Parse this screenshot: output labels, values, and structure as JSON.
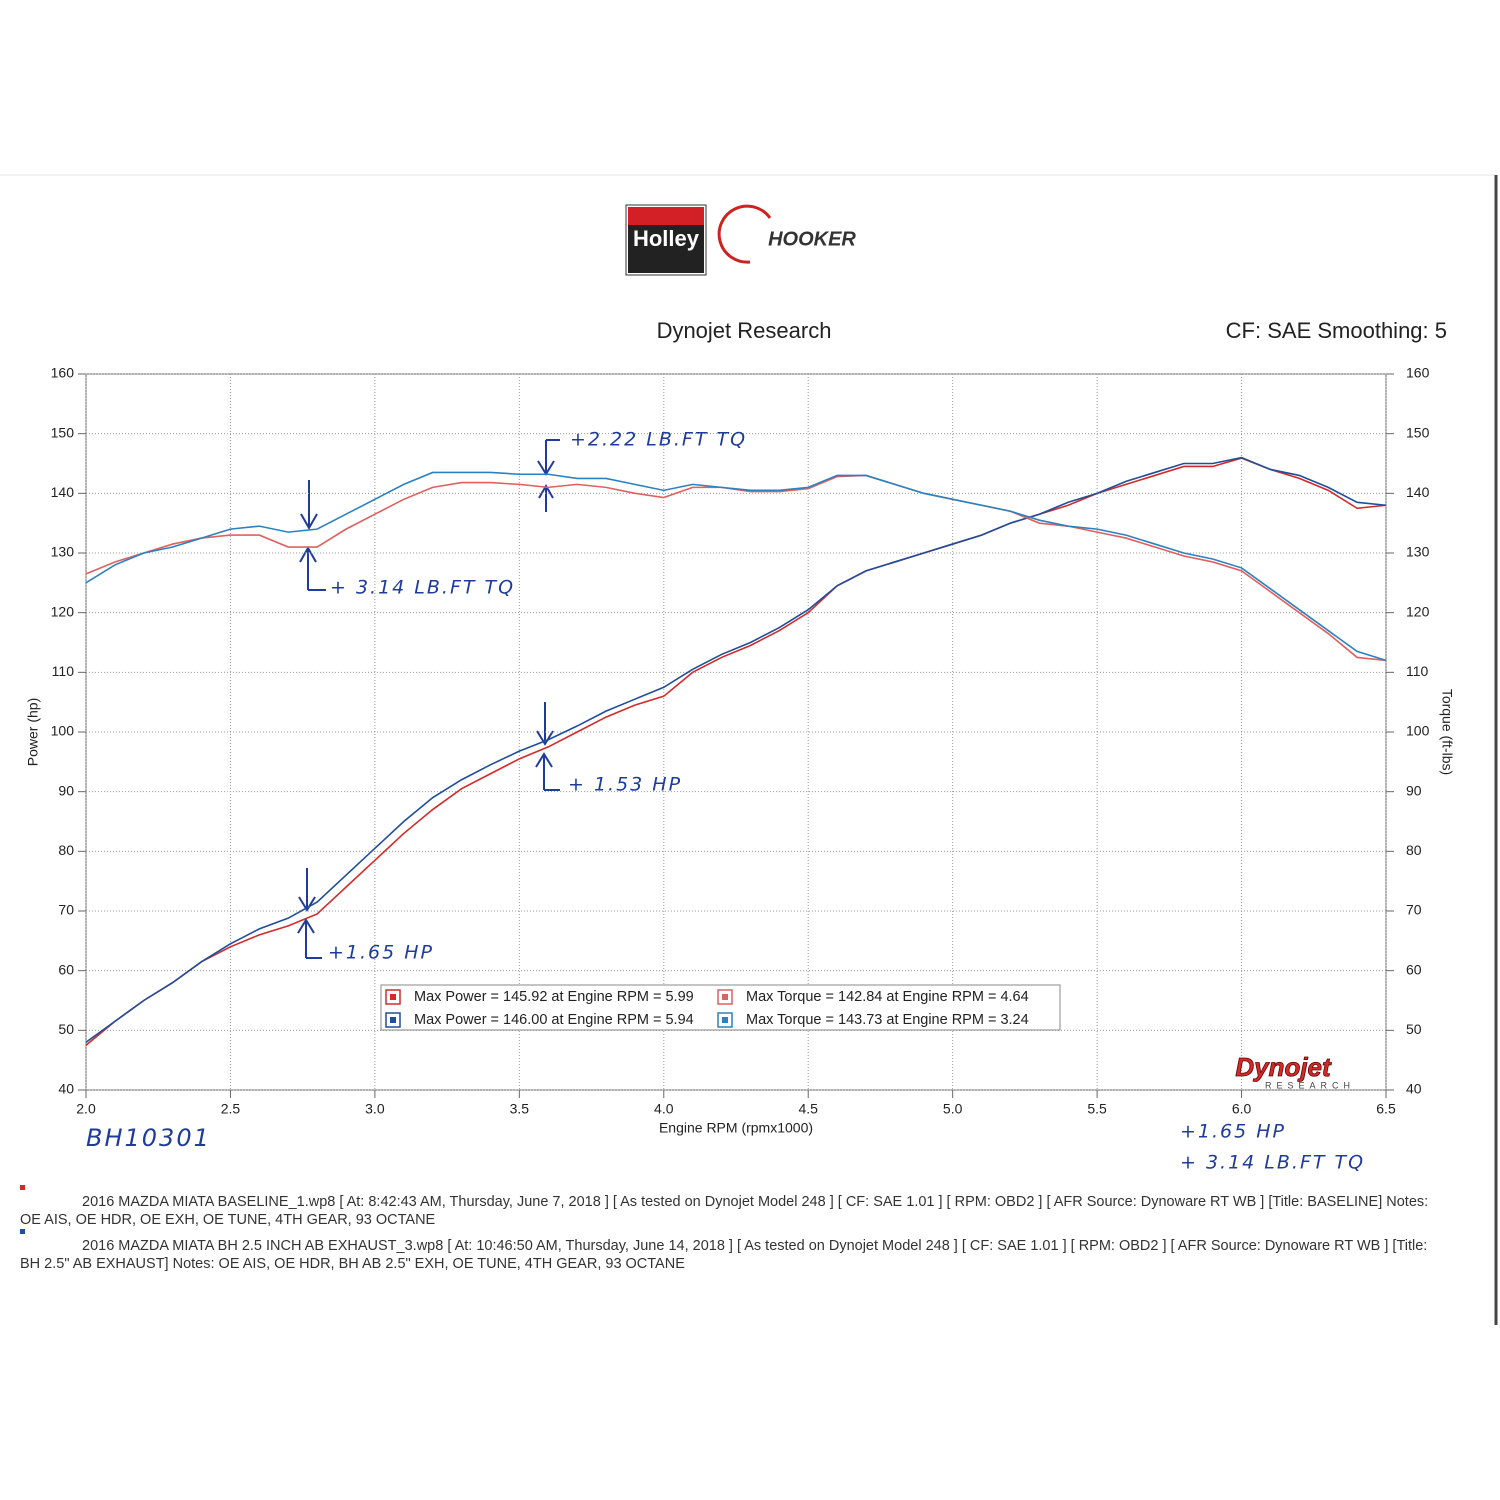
{
  "header": {
    "holley": "Holley",
    "hooker": "HOOKER"
  },
  "chart_data": {
    "type": "line",
    "title": "Dynojet Research",
    "subtitle": "CF: SAE Smoothing: 5",
    "x_label": "Engine RPM (rpmx1000)",
    "y_label": "Power (hp)",
    "y2_label": "Torque (ft-lbs)",
    "x": [
      2.0,
      2.1,
      2.2,
      2.3,
      2.4,
      2.5,
      2.6,
      2.7,
      2.8,
      2.9,
      3.0,
      3.1,
      3.2,
      3.3,
      3.4,
      3.5,
      3.6,
      3.7,
      3.8,
      3.9,
      4.0,
      4.1,
      4.2,
      4.3,
      4.4,
      4.5,
      4.6,
      4.7,
      4.8,
      4.9,
      5.0,
      5.1,
      5.2,
      5.3,
      5.4,
      5.5,
      5.6,
      5.7,
      5.8,
      5.9,
      6.0,
      6.1,
      6.2,
      6.3,
      6.4,
      6.5
    ],
    "series": [
      {
        "name": "Max Power = 145.92 at Engine RPM = 5.99",
        "color": "#d42a2a",
        "axis": "y",
        "values": [
          47.5,
          51.5,
          55,
          58,
          61.5,
          64,
          66,
          67.5,
          69.5,
          74,
          78.5,
          83,
          87,
          90.5,
          93,
          95.5,
          97.5,
          100,
          102.5,
          104.5,
          106,
          110,
          112.5,
          114.5,
          117,
          120,
          124.5,
          127,
          128.5,
          130,
          131.5,
          133,
          135,
          136.5,
          138,
          140,
          141.5,
          143,
          144.5,
          144.5,
          145.9,
          144,
          142.5,
          140.5,
          137.5,
          138
        ]
      },
      {
        "name": "Max Power = 146.00 at Engine RPM = 5.94",
        "color": "#1f4e9a",
        "axis": "y",
        "values": [
          48,
          51.5,
          55,
          58,
          61.5,
          64.5,
          67,
          68.8,
          71.5,
          76,
          80.5,
          85,
          89,
          92,
          94.5,
          96.8,
          98.7,
          101,
          103.5,
          105.5,
          107.5,
          110.5,
          113,
          115,
          117.5,
          120.5,
          124.5,
          127,
          128.5,
          130,
          131.5,
          133,
          135,
          136.5,
          138.5,
          140,
          142,
          143.5,
          145,
          145,
          146,
          144,
          143,
          141,
          138.5,
          138
        ]
      },
      {
        "name": "Max Torque = 142.84 at Engine RPM = 4.64",
        "color": "#e06060",
        "axis": "y2",
        "values": [
          126.5,
          128.5,
          130,
          131.5,
          132.5,
          133,
          133,
          131,
          131,
          134,
          136.5,
          139,
          141,
          141.8,
          141.8,
          141.5,
          141,
          141.5,
          141,
          140,
          139.3,
          141,
          141,
          140.3,
          140.3,
          140.8,
          142.8,
          143,
          141.5,
          140,
          139,
          138,
          137,
          135,
          134.5,
          133.5,
          132.5,
          131,
          129.5,
          128.5,
          127,
          123.5,
          120,
          116.5,
          112.5,
          112
        ]
      },
      {
        "name": "Max Torque = 143.73 at Engine RPM = 3.24",
        "color": "#2b82c0",
        "axis": "y2",
        "values": [
          125,
          128,
          130,
          131,
          132.5,
          134,
          134.5,
          133.5,
          134,
          136.5,
          139,
          141.5,
          143.5,
          143.5,
          143.5,
          143.2,
          143.2,
          142.5,
          142.5,
          141.5,
          140.5,
          141.5,
          141,
          140.5,
          140.5,
          141,
          143,
          143,
          141.5,
          140,
          139,
          138,
          137,
          135.5,
          134.5,
          134,
          133,
          131.5,
          130,
          129,
          127.5,
          124,
          120.5,
          117,
          113.5,
          112
        ]
      }
    ],
    "xlim": [
      2.0,
      6.5
    ],
    "xticks": [
      {
        "value": 2.0,
        "label": "2.0"
      },
      2.5,
      {
        "value": 3.0,
        "label": "3.0"
      },
      3.5,
      {
        "value": 4.0,
        "label": "4.0"
      },
      4.5,
      {
        "value": 5.0,
        "label": "5.0"
      },
      5.5,
      {
        "value": 6.0,
        "label": "6.0"
      },
      6.5
    ],
    "ylim": [
      40,
      160
    ],
    "yticks": [
      40,
      50,
      60,
      70,
      80,
      90,
      100,
      110,
      120,
      130,
      140,
      150,
      160
    ],
    "y2lim": [
      40,
      160
    ],
    "y2ticks": [
      40,
      50,
      60,
      70,
      80,
      90,
      100,
      110,
      120,
      130,
      140,
      150,
      160
    ],
    "grid": true,
    "annotations": [
      "+2.22 LB.FT TQ",
      "+ 3.14 LB.FT TQ",
      "+ 1.53 HP",
      "+1.65 HP",
      "BH10301",
      "+1.65 HP",
      "+ 3.14 LB.FT TQ"
    ],
    "logo": {
      "name": "Dynojet",
      "sub": "RESEARCH"
    }
  },
  "footer": [
    "2016 MAZDA MIATA BASELINE_1.wp8 [ At: 8:42:43 AM, Thursday, June 7, 2018 ] [ As tested on Dynojet Model 248 ] [ CF: SAE 1.01 ] [ RPM: OBD2 ] [ AFR Source: Dynoware RT WB ] [Title: BASELINE]  Notes: OE AIS, OE HDR, OE EXH, OE TUNE, 4TH GEAR, 93 OCTANE",
    "2016 MAZDA MIATA BH 2.5 INCH AB EXHAUST_3.wp8 [ At: 10:46:50 AM, Thursday, June 14, 2018 ] [ As tested on Dynojet Model 248 ] [ CF: SAE 1.01 ] [ RPM: OBD2 ] [ AFR Source: Dynoware RT WB ] [Title: BH 2.5\" AB EXHAUST]  Notes: OE AIS, OE HDR, BH AB 2.5\" EXH, OE TUNE, 4TH GEAR, 93 OCTANE"
  ]
}
